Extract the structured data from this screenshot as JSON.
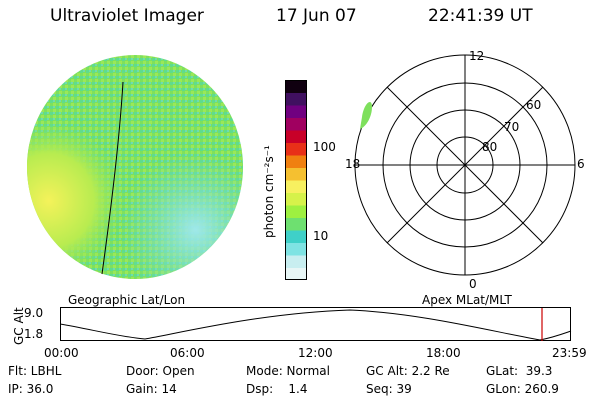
{
  "header": {
    "instrument": "Ultraviolet Imager",
    "date": "17 Jun 07",
    "time": "22:41:39 UT"
  },
  "colorbar": {
    "unit_label": "photon cm⁻²s⁻¹",
    "ticks": [
      "100",
      "10"
    ],
    "colors": [
      "#e8f6f6",
      "#c8eef0",
      "#7fe3e3",
      "#3fd0c8",
      "#6ee070",
      "#9ef040",
      "#d6f24a",
      "#f7f060",
      "#f5c030",
      "#f08010",
      "#e83018",
      "#c80028",
      "#a00060",
      "#700080",
      "#401060",
      "#100010"
    ]
  },
  "left_panel": {
    "label": "Geographic Lat/Lon"
  },
  "polar": {
    "label": "Apex MLat/MLT",
    "mlt_labels": {
      "top": "12",
      "left": "18",
      "right": "6",
      "bottom": "0"
    },
    "lat_labels": [
      "80",
      "70",
      "60"
    ]
  },
  "timeline": {
    "axis_label": "GC Alt",
    "y_ticks": [
      "9.0",
      "1.8"
    ],
    "x_ticks": [
      "00:00",
      "06:00",
      "12:00",
      "18:00",
      "23:59"
    ],
    "marker_color": "#cc0000"
  },
  "status": {
    "flt": "Flt: LBHL",
    "door": "Door: Open",
    "mode": "Mode: Normal",
    "gc_alt": "GC Alt: 2.2 Re",
    "glat": "GLat:  39.3",
    "ip": "IP: 36.0",
    "gain": "Gain: 14",
    "dsp": "Dsp:    1.4",
    "seq": "Seq: 39",
    "glon": "GLon: 260.9"
  }
}
